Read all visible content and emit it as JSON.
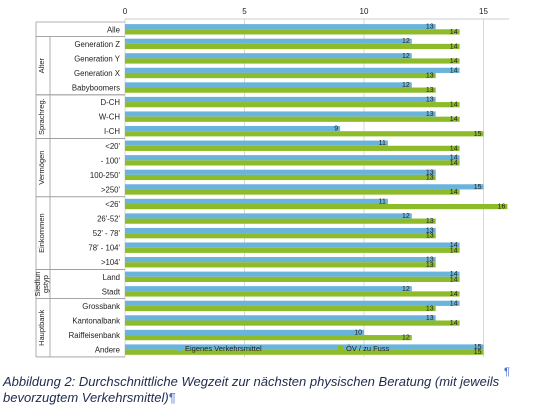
{
  "chart_data": {
    "type": "bar",
    "orientation": "horizontal",
    "xlim": [
      0,
      15.5
    ],
    "x_ticks": [
      "0",
      "5",
      "10",
      "15"
    ],
    "legend_position": "bottom",
    "series": [
      {
        "name": "Eigenes Verkehrsmittel",
        "color": "#6ab4dc"
      },
      {
        "name": "ÖV / zu Fuss",
        "color": "#8dbb2a"
      }
    ],
    "rows": [
      {
        "label": "Alle",
        "group": "",
        "values": [
          13,
          14
        ]
      },
      {
        "label": "Generation Z",
        "group": "Alter",
        "values": [
          12,
          14
        ]
      },
      {
        "label": "Generation Y",
        "group": "Alter",
        "values": [
          12,
          14
        ]
      },
      {
        "label": "Generation X",
        "group": "Alter",
        "values": [
          14,
          13
        ]
      },
      {
        "label": "Babyboomers",
        "group": "Alter",
        "values": [
          12,
          13
        ]
      },
      {
        "label": "D-CH",
        "group": "Sprachreg.",
        "values": [
          13,
          14
        ]
      },
      {
        "label": "W-CH",
        "group": "Sprachreg.",
        "values": [
          13,
          14
        ]
      },
      {
        "label": "I-CH",
        "group": "Sprachreg.",
        "values": [
          9,
          15
        ]
      },
      {
        "label": "<20'",
        "group": "Vermögen",
        "values": [
          11,
          14
        ]
      },
      {
        "label": "- 100'",
        "group": "Vermögen",
        "values": [
          14,
          14
        ]
      },
      {
        "label": "100-250'",
        "group": "Vermögen",
        "values": [
          13,
          13
        ]
      },
      {
        "label": ">250'",
        "group": "Vermögen",
        "values": [
          15,
          14
        ]
      },
      {
        "label": "<26'",
        "group": "Einkommen",
        "values": [
          11,
          16
        ]
      },
      {
        "label": "26'-52'",
        "group": "Einkommen",
        "values": [
          12,
          13
        ]
      },
      {
        "label": "52' - 78'",
        "group": "Einkommen",
        "values": [
          13,
          13
        ]
      },
      {
        "label": "78' - 104'",
        "group": "Einkommen",
        "values": [
          14,
          14
        ]
      },
      {
        "label": ">104'",
        "group": "Einkommen",
        "values": [
          13,
          13
        ]
      },
      {
        "label": "Land",
        "group": "Siedlungstyp",
        "values": [
          14,
          14
        ]
      },
      {
        "label": "Stadt",
        "group": "Siedlungstyp",
        "values": [
          12,
          14
        ]
      },
      {
        "label": "Grossbank",
        "group": "Hauptbank",
        "values": [
          14,
          13
        ]
      },
      {
        "label": "Kantonalbank",
        "group": "Hauptbank",
        "values": [
          13,
          14
        ]
      },
      {
        "label": "Raiffeisenbank",
        "group": "Hauptbank",
        "values": [
          10,
          12
        ]
      },
      {
        "label": "Andere",
        "group": "Hauptbank",
        "values": [
          15,
          15
        ]
      }
    ],
    "groups": [
      {
        "name": "Alter",
        "lines": [
          "Alter"
        ]
      },
      {
        "name": "Sprachreg.",
        "lines": [
          "Sprachreg."
        ]
      },
      {
        "name": "Vermögen",
        "lines": [
          "Vermögen"
        ]
      },
      {
        "name": "Einkommen",
        "lines": [
          "Einkommen"
        ]
      },
      {
        "name": "Siedlungstyp",
        "lines": [
          "Siedlun",
          "gstyp"
        ]
      },
      {
        "name": "Hauptbank",
        "lines": [
          "Hauptbank"
        ]
      }
    ]
  },
  "caption": {
    "line1": "Abbildung 2: Durchschnittliche Wegzeit zur nächsten physischen Beratung (mit jeweils",
    "line2": "bevorzugtem Verkehrsmittel)",
    "pilcrow": "¶",
    "pilcrow_right": "¶"
  }
}
